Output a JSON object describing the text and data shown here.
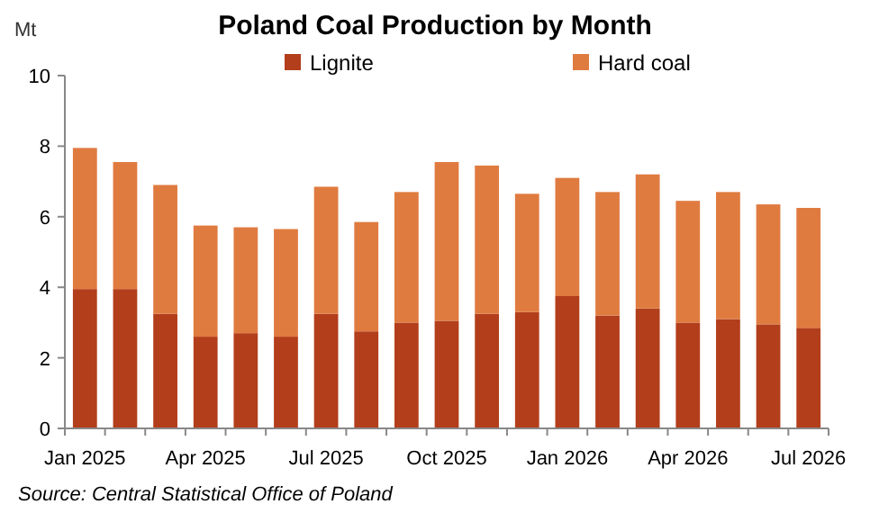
{
  "chart_data": {
    "type": "bar",
    "title": "Poland Coal Production by Month",
    "ylabel": "Mt",
    "categories": [
      "Jan 2025",
      null,
      null,
      "Apr 2025",
      null,
      null,
      "Jul 2025",
      null,
      null,
      "Oct 2025",
      null,
      null,
      "Jan 2026",
      null,
      null,
      "Apr 2026",
      null,
      null,
      "Jul 2026"
    ],
    "stacked": true,
    "series": [
      {
        "name": "Lignite",
        "color": "#b33e1b",
        "values": [
          3.95,
          3.95,
          3.25,
          2.6,
          2.7,
          2.6,
          3.25,
          2.75,
          3.0,
          3.05,
          3.25,
          3.3,
          3.75,
          3.2,
          3.4,
          3.0,
          3.1,
          2.95,
          2.85
        ]
      },
      {
        "name": "Hard coal",
        "color": "#e07b40",
        "values": [
          4.0,
          3.6,
          3.65,
          3.15,
          3.0,
          3.05,
          3.6,
          3.1,
          3.7,
          4.5,
          4.2,
          3.35,
          3.35,
          3.5,
          3.8,
          3.45,
          3.6,
          3.4,
          3.4
        ]
      }
    ],
    "ylim": [
      0,
      10
    ],
    "yticks": [
      0,
      2,
      4,
      6,
      8,
      10
    ],
    "grid": false,
    "legend": "top",
    "annotations": [
      "Source: Central Statistical Office of Poland"
    ]
  }
}
